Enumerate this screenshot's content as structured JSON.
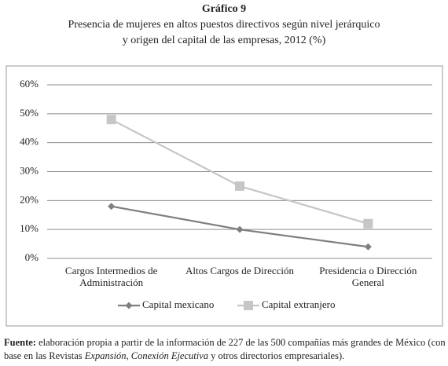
{
  "chart_data": {
    "type": "line",
    "title": "Gráfico 9",
    "subtitle": "Presencia de mujeres en altos puestos directivos según nivel jerárquico y origen del capital de las empresas, 2012 (%)",
    "categories": [
      "Cargos Intermedios de Administración",
      "Altos Cargos de Dirección",
      "Presidencia o Dirección General"
    ],
    "series": [
      {
        "name": "Capital mexicano",
        "color": "#7f7f7f",
        "marker": "diamond",
        "values": [
          18,
          10,
          4
        ]
      },
      {
        "name": "Capital extranjero",
        "color": "#c6c6c6",
        "marker": "square",
        "values": [
          48,
          25,
          12
        ]
      }
    ],
    "ylim": [
      0,
      60
    ],
    "yticks": [
      {
        "value": 0,
        "label": "0%"
      },
      {
        "value": 10,
        "label": "10%"
      },
      {
        "value": 20,
        "label": "20%"
      },
      {
        "value": 30,
        "label": "30%"
      },
      {
        "value": 40,
        "label": "40%"
      },
      {
        "value": 50,
        "label": "50%"
      },
      {
        "value": 60,
        "label": "60%"
      }
    ],
    "grid": true,
    "legend": "bottom",
    "source": {
      "label": "Fuente:",
      "text": [
        "elaboración propia a partir de la información de 227 de las 500 compañías más grandes de México (con base en las Revistas ",
        "Expansión, Conexión Ejecutiva",
        " y otros directorios empresariales)."
      ]
    }
  }
}
